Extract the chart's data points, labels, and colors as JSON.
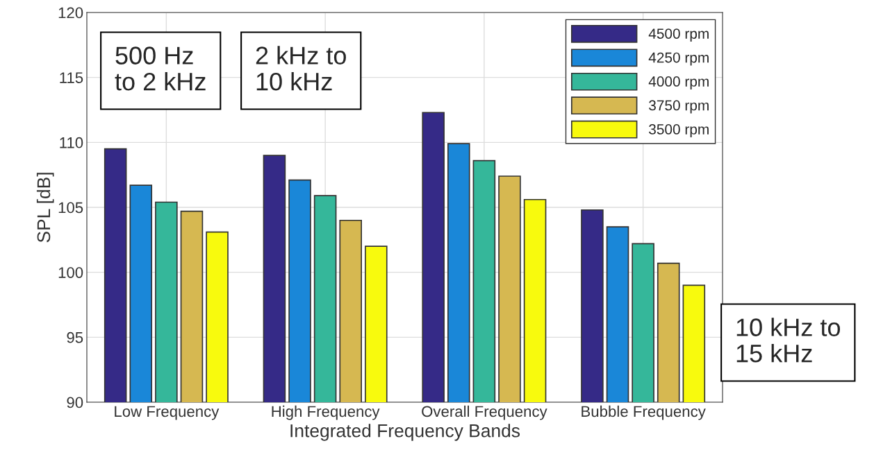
{
  "chart_data": {
    "type": "bar",
    "categories": [
      "Low Frequency",
      "High Frequency",
      "Overall Frequency",
      "Bubble Frequency"
    ],
    "series": [
      {
        "name": "4500 rpm",
        "color": "#352a87",
        "values": [
          109.5,
          109.0,
          112.3,
          104.8
        ]
      },
      {
        "name": "4250 rpm",
        "color": "#1a87d8",
        "values": [
          106.7,
          107.1,
          109.9,
          103.5
        ]
      },
      {
        "name": "4000 rpm",
        "color": "#35b79a",
        "values": [
          105.4,
          105.9,
          108.6,
          102.2
        ]
      },
      {
        "name": "3750 rpm",
        "color": "#d6b851",
        "values": [
          104.7,
          104.0,
          107.4,
          100.7
        ]
      },
      {
        "name": "3500 rpm",
        "color": "#f8fa0d",
        "values": [
          103.1,
          102.0,
          105.6,
          99.0
        ]
      }
    ],
    "xlabel": "Integrated Frequency Bands",
    "ylabel": "SPL [dB]",
    "ylim": [
      90,
      120
    ],
    "yticks": [
      90,
      95,
      100,
      105,
      110,
      115,
      120
    ],
    "annotations": [
      "500 Hz\nto 2 kHz",
      "2 kHz to\n10 kHz",
      "10 kHz to\n15 kHz"
    ],
    "grid": true,
    "legend": "top right"
  }
}
